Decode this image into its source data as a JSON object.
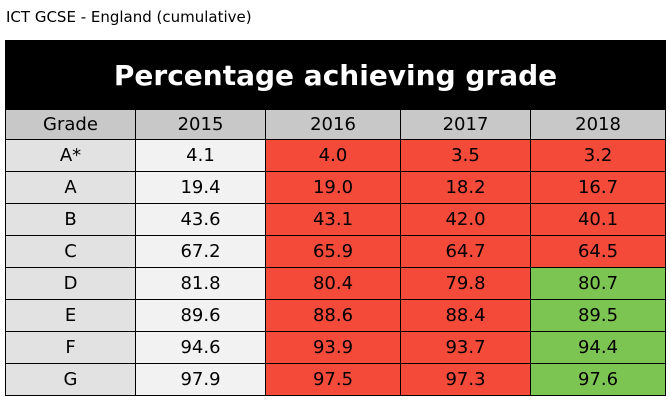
{
  "header": {
    "title": "ICT GCSE - England (cumulative)"
  },
  "table": {
    "caption": "Percentage achieving grade",
    "columns": [
      "Grade",
      "2015",
      "2016",
      "2017",
      "2018"
    ],
    "header_fill": "#c8c8c8",
    "caption_fill": "#000000",
    "rows": [
      [
        "A*",
        "4.1",
        "4.0",
        "3.5",
        "3.2"
      ],
      [
        "A",
        "19.4",
        "19.0",
        "18.2",
        "16.7"
      ],
      [
        "B",
        "43.6",
        "43.1",
        "42.0",
        "40.1"
      ],
      [
        "C",
        "67.2",
        "65.9",
        "64.7",
        "64.5"
      ],
      [
        "D",
        "81.8",
        "80.4",
        "79.8",
        "80.7"
      ],
      [
        "E",
        "89.6",
        "88.6",
        "88.4",
        "89.5"
      ],
      [
        "F",
        "94.6",
        "93.9",
        "93.7",
        "94.4"
      ],
      [
        "G",
        "97.9",
        "97.5",
        "97.3",
        "97.6"
      ]
    ],
    "fills": [
      [
        "#e2e2e2",
        "#f2f2f2",
        "#f44a3a",
        "#f44a3a",
        "#f44a3a"
      ],
      [
        "#e2e2e2",
        "#f2f2f2",
        "#f44a3a",
        "#f44a3a",
        "#f44a3a"
      ],
      [
        "#e2e2e2",
        "#f2f2f2",
        "#f44a3a",
        "#f44a3a",
        "#f44a3a"
      ],
      [
        "#e2e2e2",
        "#f2f2f2",
        "#f44a3a",
        "#f44a3a",
        "#f44a3a"
      ],
      [
        "#e2e2e2",
        "#f2f2f2",
        "#f44a3a",
        "#f44a3a",
        "#7dc552"
      ],
      [
        "#e2e2e2",
        "#f2f2f2",
        "#f44a3a",
        "#f44a3a",
        "#7dc552"
      ],
      [
        "#e2e2e2",
        "#f2f2f2",
        "#f44a3a",
        "#f44a3a",
        "#7dc552"
      ],
      [
        "#e2e2e2",
        "#f2f2f2",
        "#f44a3a",
        "#f44a3a",
        "#7dc552"
      ]
    ]
  }
}
